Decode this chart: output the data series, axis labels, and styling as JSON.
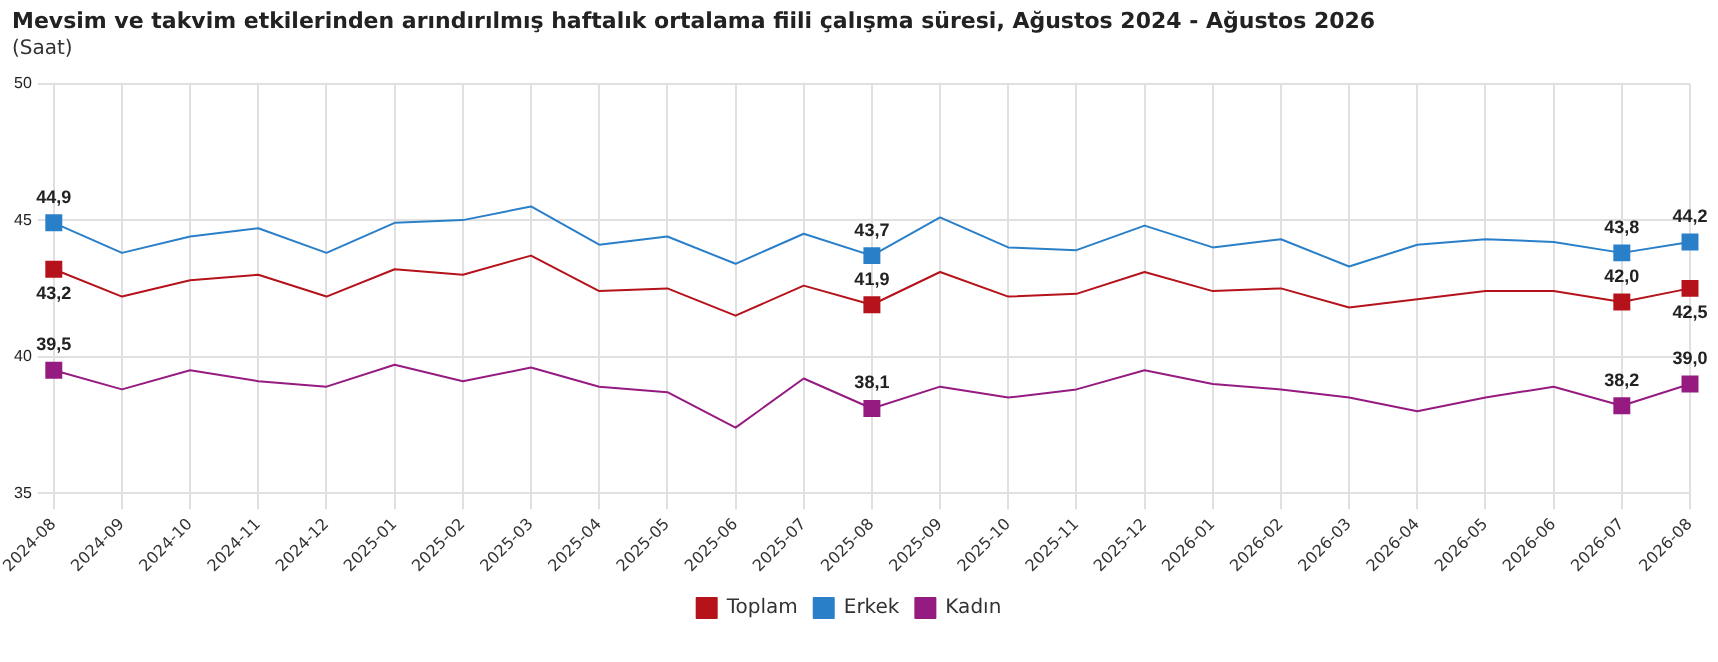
{
  "chart_data": {
    "type": "line",
    "title": "Mevsim ve takvim etkilerinden arındırılmış haftalık ortalama fiili çalışma süresi, Ağustos 2024 - Ağustos 2026",
    "subtitle": "(Saat)",
    "categories": [
      "2024-08",
      "2024-09",
      "2024-10",
      "2024-11",
      "2024-12",
      "2025-01",
      "2025-02",
      "2025-03",
      "2025-04",
      "2025-05",
      "2025-06",
      "2025-07",
      "2025-08",
      "2025-09",
      "2025-10",
      "2025-11",
      "2025-12",
      "2026-01",
      "2026-02",
      "2026-03",
      "2026-04",
      "2026-05",
      "2026-06",
      "2026-07",
      "2026-08"
    ],
    "series": [
      {
        "name": "Toplam",
        "color": "#b5121b",
        "values": [
          43.2,
          42.2,
          42.8,
          43.0,
          42.2,
          43.2,
          43.0,
          43.7,
          42.4,
          42.5,
          41.5,
          42.6,
          41.9,
          43.1,
          42.2,
          42.3,
          43.1,
          42.4,
          42.5,
          41.8,
          42.1,
          42.4,
          42.4,
          42.0,
          42.5
        ],
        "value_labels": [
          "43,2",
          null,
          null,
          null,
          null,
          null,
          null,
          null,
          null,
          null,
          null,
          null,
          "41,9",
          null,
          null,
          null,
          null,
          null,
          null,
          null,
          null,
          null,
          null,
          "42,0",
          "42,5"
        ]
      },
      {
        "name": "Erkek",
        "color": "#2a7fc9",
        "values": [
          44.9,
          43.8,
          44.4,
          44.7,
          43.8,
          44.9,
          45.0,
          45.5,
          44.1,
          44.4,
          43.4,
          44.5,
          43.7,
          45.1,
          44.0,
          43.9,
          44.8,
          44.0,
          44.3,
          43.3,
          44.1,
          44.3,
          44.2,
          43.8,
          44.2
        ],
        "value_labels": [
          "44,9",
          null,
          null,
          null,
          null,
          null,
          null,
          null,
          null,
          null,
          null,
          null,
          "43,7",
          null,
          null,
          null,
          null,
          null,
          null,
          null,
          null,
          null,
          null,
          "43,8",
          "44,2"
        ]
      },
      {
        "name": "Kadın",
        "color": "#951b81",
        "values": [
          39.5,
          38.8,
          39.5,
          39.1,
          38.9,
          39.7,
          39.1,
          39.6,
          38.9,
          38.7,
          37.4,
          39.2,
          38.1,
          38.9,
          38.5,
          38.8,
          39.5,
          39.0,
          38.8,
          38.5,
          38.0,
          38.5,
          38.9,
          38.2,
          39.0
        ],
        "value_labels": [
          "39,5",
          null,
          null,
          null,
          null,
          null,
          null,
          null,
          null,
          null,
          null,
          null,
          "38,1",
          null,
          null,
          null,
          null,
          null,
          null,
          null,
          null,
          null,
          null,
          "38,2",
          "39,0"
        ]
      }
    ],
    "ylim": [
      35,
      50
    ],
    "yticks": [
      35,
      40,
      45,
      50
    ],
    "grid": true,
    "legend": "bottom",
    "line_style": "solid"
  }
}
